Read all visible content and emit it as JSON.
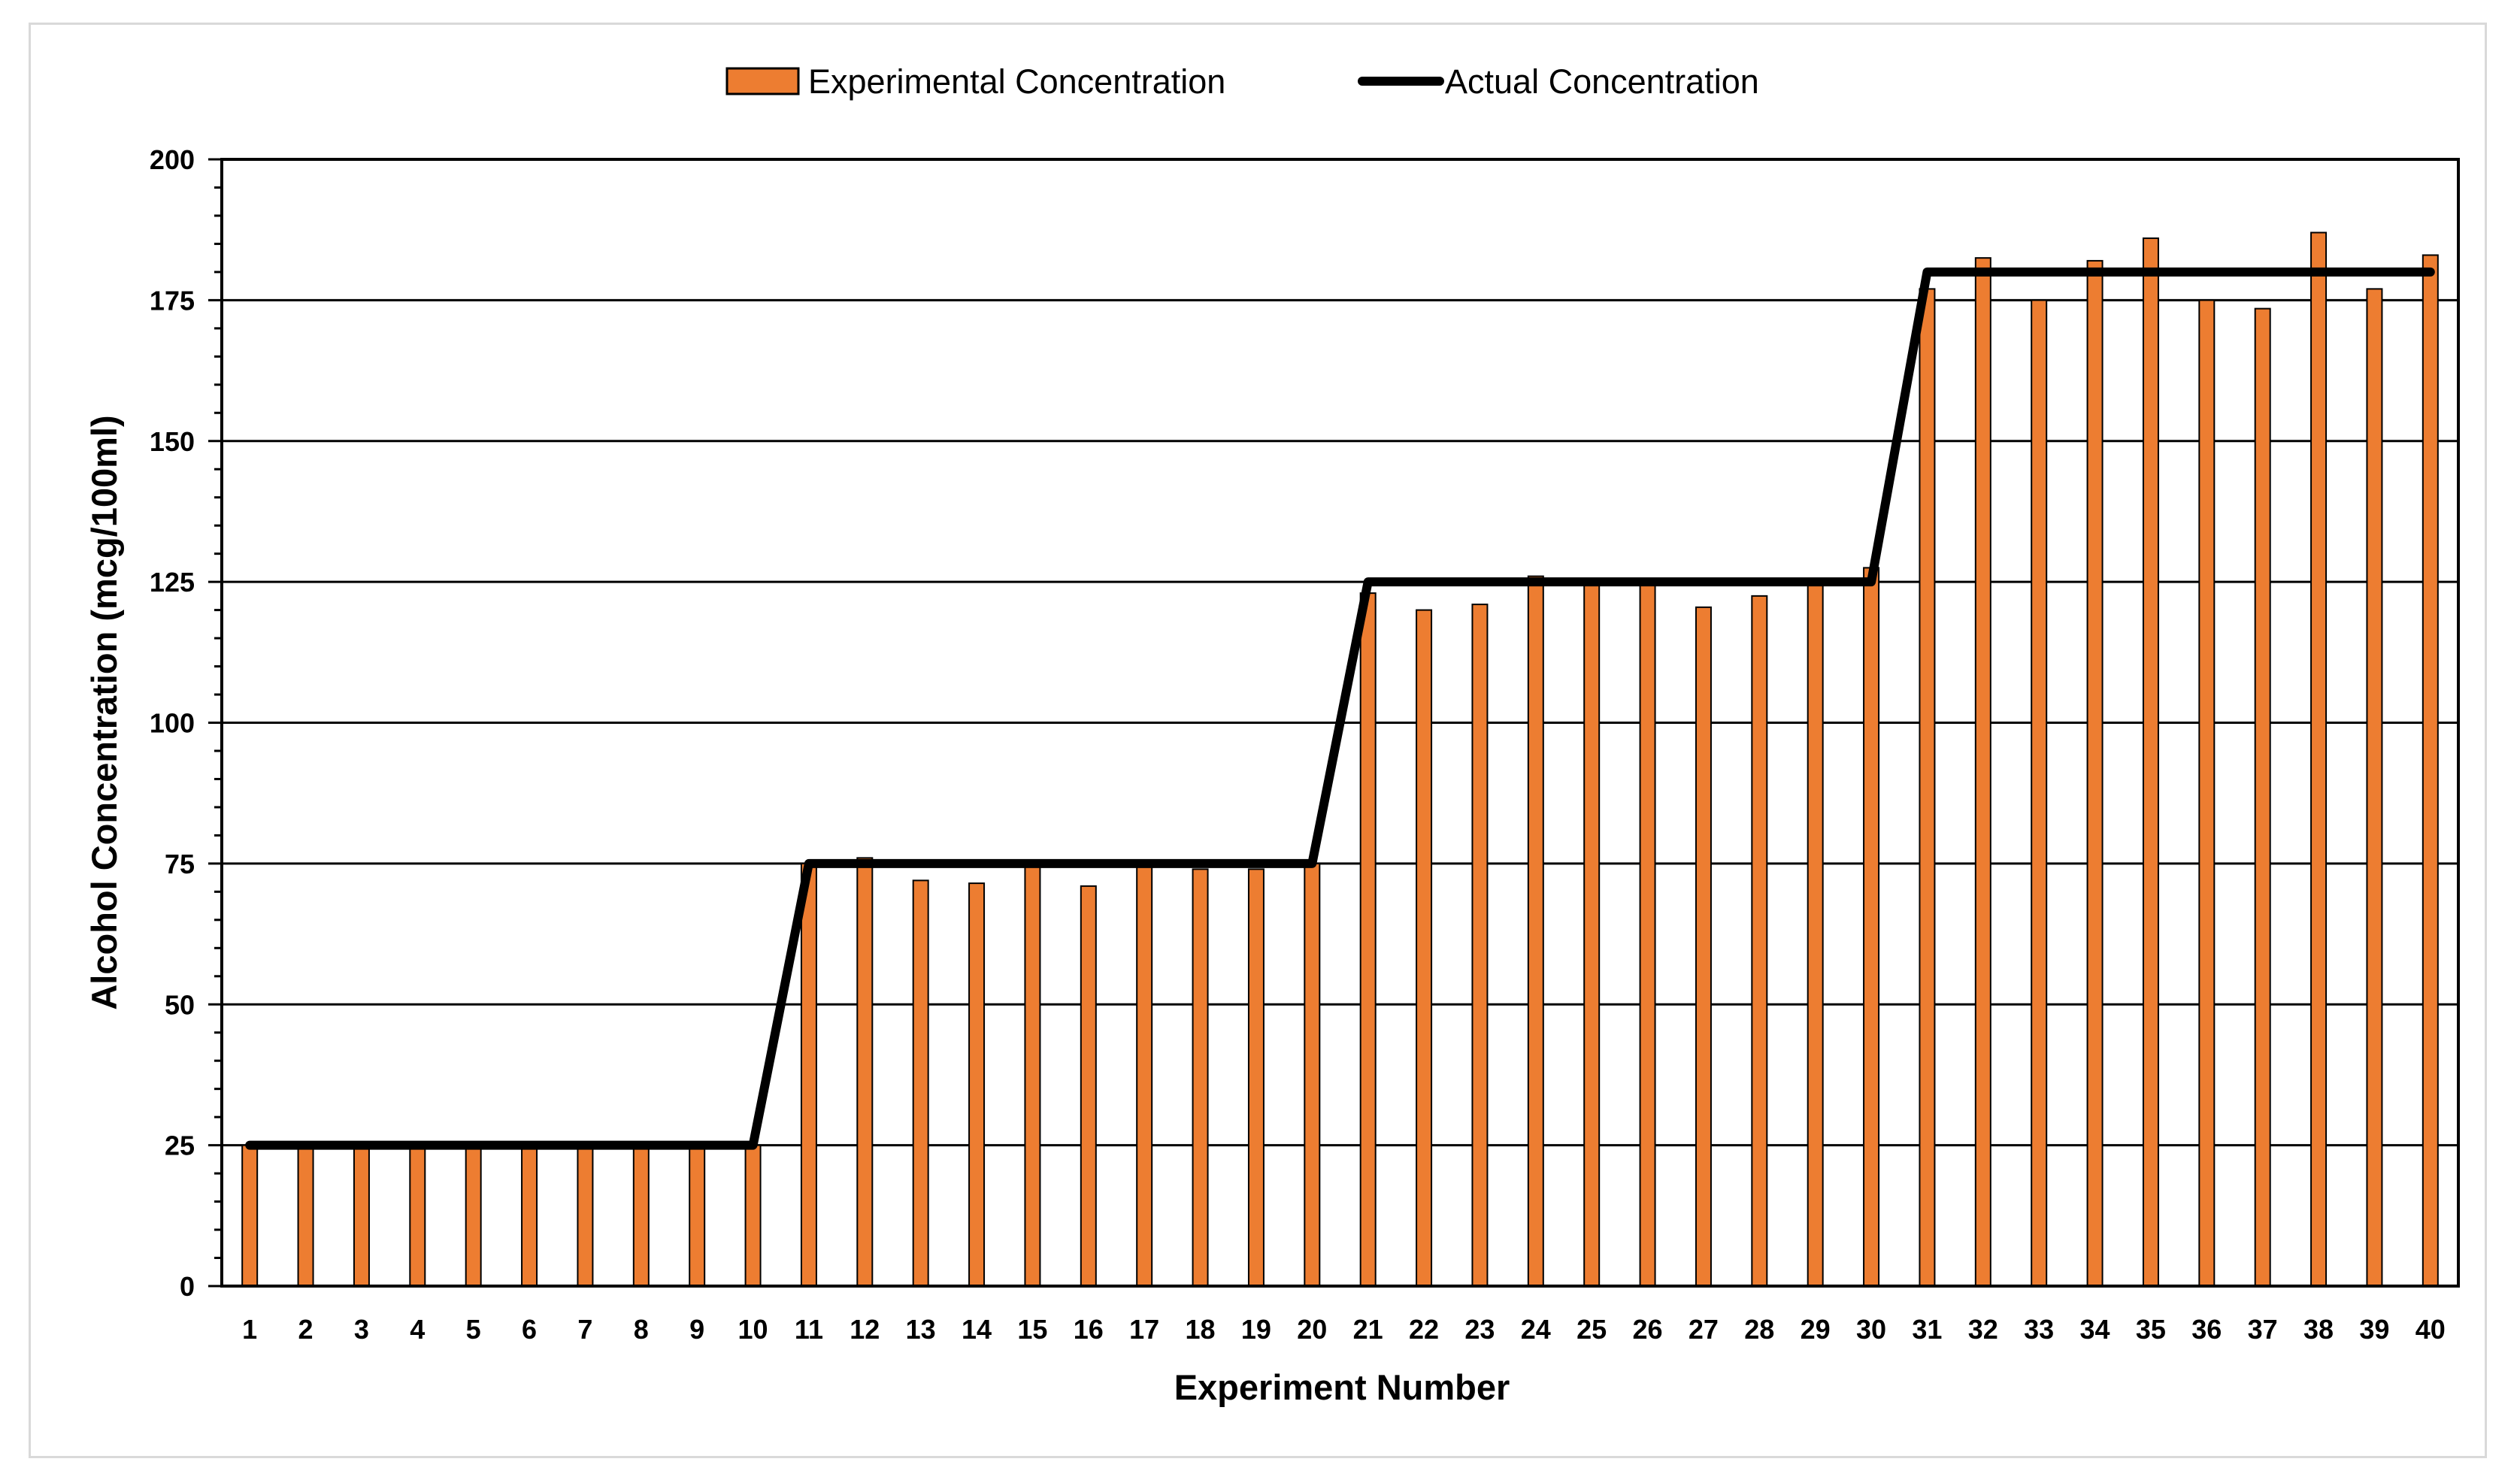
{
  "chart_data": {
    "type": "bar",
    "title": "",
    "xlabel": "Experiment Number",
    "ylabel": "Alcohol Concentration (mcg/100ml)",
    "ylim": [
      0,
      200
    ],
    "yticks": [
      "0",
      "25",
      "50",
      "75",
      "100",
      "125",
      "150",
      "175",
      "200"
    ],
    "grid": true,
    "legend_position": "top-center",
    "categories": [
      "1",
      "2",
      "3",
      "4",
      "5",
      "6",
      "7",
      "8",
      "9",
      "10",
      "11",
      "12",
      "13",
      "14",
      "15",
      "16",
      "17",
      "18",
      "19",
      "20",
      "21",
      "22",
      "23",
      "24",
      "25",
      "26",
      "27",
      "28",
      "29",
      "30",
      "31",
      "32",
      "33",
      "34",
      "35",
      "36",
      "37",
      "38",
      "39",
      "40"
    ],
    "series": [
      {
        "name": "Experimental Concentration",
        "type": "bar",
        "color": "#ed7d31",
        "values": [
          25,
          25,
          25,
          25,
          25,
          25,
          25,
          25,
          25,
          25,
          75,
          76,
          72,
          71.5,
          74.5,
          71,
          75,
          74,
          74,
          75,
          123,
          120,
          121,
          126,
          125,
          125,
          120.5,
          122.5,
          125,
          127.5,
          177,
          182.5,
          175,
          182,
          186,
          175,
          173.5,
          187,
          177,
          183
        ]
      },
      {
        "name": "Actual Concentration",
        "type": "line",
        "color": "#000000",
        "values": [
          25,
          25,
          25,
          25,
          25,
          25,
          25,
          25,
          25,
          25,
          75,
          75,
          75,
          75,
          75,
          75,
          75,
          75,
          75,
          75,
          125,
          125,
          125,
          125,
          125,
          125,
          125,
          125,
          125,
          125,
          180,
          180,
          180,
          180,
          180,
          180,
          180,
          180,
          180,
          180
        ]
      }
    ]
  }
}
